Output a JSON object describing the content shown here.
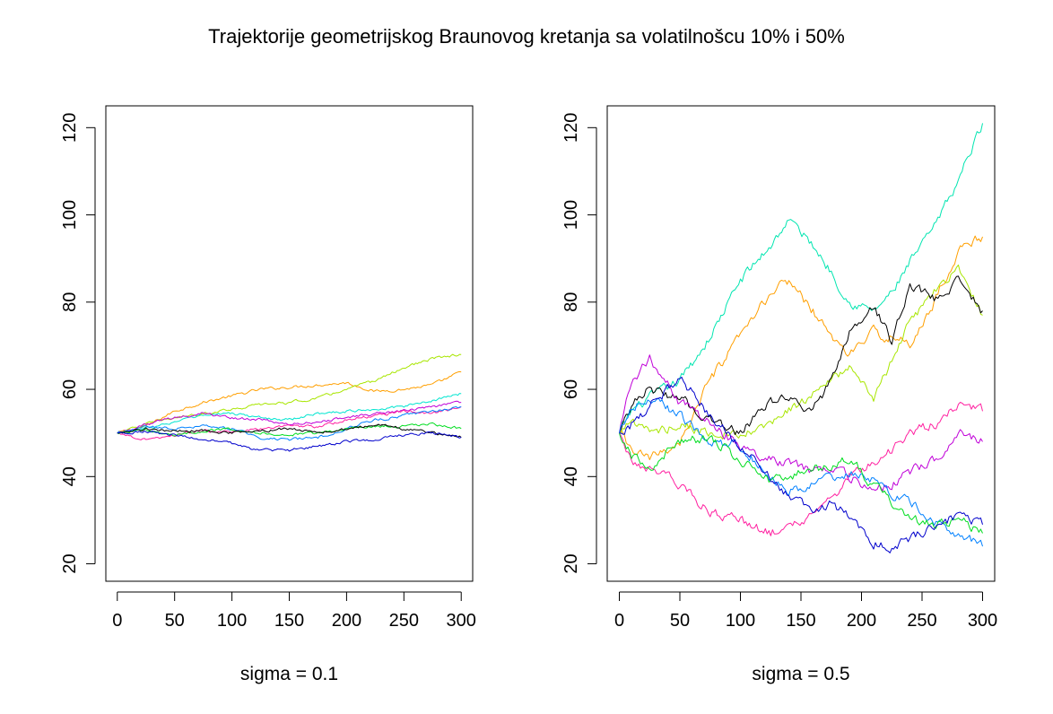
{
  "title": "Trajektorije geometrijskog Braunovog kretanja sa volatilnošcu 10% i 50%",
  "chart_data": [
    {
      "type": "line",
      "title": "",
      "xlabel": "sigma = 0.1",
      "ylabel": "",
      "xlim": [
        -10,
        310
      ],
      "ylim": [
        16,
        125
      ],
      "xticks": [
        0,
        50,
        100,
        150,
        200,
        250,
        300
      ],
      "yticks": [
        20,
        40,
        60,
        80,
        100,
        120
      ],
      "grid": false,
      "legend": "none",
      "series": [
        {
          "color": "#ff9f00",
          "x": [
            0,
            25,
            50,
            75,
            100,
            125,
            150,
            175,
            200,
            225,
            250,
            275,
            300
          ],
          "values": [
            50,
            51.5,
            55,
            57,
            58.5,
            60,
            60.5,
            61,
            61.5,
            59.5,
            60,
            61,
            64
          ]
        },
        {
          "color": "#a8e600",
          "x": [
            0,
            25,
            50,
            75,
            100,
            125,
            150,
            175,
            200,
            225,
            250,
            275,
            300
          ],
          "values": [
            50,
            52,
            53.5,
            54.5,
            55.5,
            56.5,
            57,
            58,
            60,
            62,
            65,
            67,
            68
          ]
        },
        {
          "color": "#00e5d0",
          "x": [
            0,
            25,
            50,
            75,
            100,
            125,
            150,
            175,
            200,
            225,
            250,
            275,
            300
          ],
          "values": [
            50,
            51,
            52.5,
            54,
            54.5,
            53.5,
            53,
            54.5,
            55,
            55.5,
            56,
            57.5,
            59
          ]
        },
        {
          "color": "#c000d8",
          "x": [
            0,
            25,
            50,
            75,
            100,
            125,
            150,
            175,
            200,
            225,
            250,
            275,
            300
          ],
          "values": [
            50,
            52,
            53.5,
            54.5,
            53.5,
            53,
            52,
            52.5,
            53.5,
            54.5,
            55,
            56,
            57
          ]
        },
        {
          "color": "#ff20a0",
          "x": [
            0,
            25,
            50,
            75,
            100,
            125,
            150,
            175,
            200,
            225,
            250,
            275,
            300
          ],
          "values": [
            50,
            48.5,
            49.5,
            50.5,
            50,
            51,
            51.5,
            51.5,
            53,
            54,
            55,
            54.5,
            56
          ]
        },
        {
          "color": "#0080ff",
          "x": [
            0,
            25,
            50,
            75,
            100,
            125,
            150,
            175,
            200,
            225,
            250,
            275,
            300
          ],
          "values": [
            50,
            51.5,
            51,
            51.5,
            51,
            49,
            48.5,
            49,
            51,
            53,
            54,
            55,
            56
          ]
        },
        {
          "color": "#00dd20",
          "x": [
            0,
            25,
            50,
            75,
            100,
            125,
            150,
            175,
            200,
            225,
            250,
            275,
            300
          ],
          "values": [
            50,
            50.5,
            49.5,
            50.5,
            51,
            50,
            49.5,
            50,
            51,
            51.5,
            51.5,
            52,
            51
          ]
        },
        {
          "color": "#000000",
          "x": [
            0,
            25,
            50,
            75,
            100,
            125,
            150,
            175,
            200,
            225,
            250,
            275,
            300
          ],
          "values": [
            50,
            51,
            50.5,
            50.5,
            50,
            50.5,
            51,
            50,
            51,
            52,
            51,
            50,
            49
          ]
        },
        {
          "color": "#0000cc",
          "x": [
            0,
            25,
            50,
            75,
            100,
            125,
            150,
            175,
            200,
            225,
            250,
            275,
            300
          ],
          "values": [
            50,
            50.5,
            49.5,
            48.5,
            47.5,
            46,
            46,
            47,
            48,
            48.5,
            49.5,
            50,
            49
          ]
        }
      ]
    },
    {
      "type": "line",
      "title": "",
      "xlabel": "sigma = 0.5",
      "ylabel": "",
      "xlim": [
        -10,
        310
      ],
      "ylim": [
        16,
        125
      ],
      "xticks": [
        0,
        50,
        100,
        150,
        200,
        250,
        300
      ],
      "yticks": [
        20,
        40,
        60,
        80,
        100,
        120
      ],
      "grid": false,
      "legend": "none",
      "series": [
        {
          "color": "#00e5b0",
          "x": [
            0,
            10,
            25,
            50,
            75,
            100,
            125,
            140,
            160,
            175,
            190,
            210,
            225,
            240,
            260,
            280,
            300
          ],
          "values": [
            50,
            55,
            58,
            62,
            72,
            85,
            93,
            99,
            93,
            87,
            80,
            78,
            82,
            89,
            97,
            108,
            121
          ]
        },
        {
          "color": "#ff9f00",
          "x": [
            0,
            10,
            25,
            50,
            75,
            100,
            125,
            140,
            160,
            175,
            190,
            210,
            225,
            240,
            260,
            280,
            300
          ],
          "values": [
            50,
            46,
            44,
            48,
            62,
            72,
            82,
            85,
            78,
            72,
            68,
            73,
            72,
            70,
            80,
            92,
            95
          ]
        },
        {
          "color": "#a8e600",
          "x": [
            0,
            10,
            25,
            50,
            75,
            100,
            125,
            140,
            160,
            175,
            190,
            210,
            225,
            240,
            260,
            280,
            300
          ],
          "values": [
            50,
            53,
            50,
            52,
            50,
            49,
            52,
            55,
            59,
            62,
            65,
            58,
            66,
            76,
            82,
            88,
            77
          ]
        },
        {
          "color": "#000000",
          "x": [
            0,
            10,
            25,
            50,
            75,
            100,
            125,
            140,
            160,
            175,
            190,
            210,
            225,
            240,
            260,
            280,
            300
          ],
          "values": [
            50,
            57,
            60,
            58,
            53,
            50,
            57,
            58,
            55,
            62,
            73,
            79,
            71,
            84,
            81,
            85,
            78
          ]
        },
        {
          "color": "#ff20a0",
          "x": [
            0,
            10,
            25,
            50,
            75,
            100,
            125,
            140,
            160,
            175,
            190,
            210,
            225,
            240,
            260,
            280,
            300
          ],
          "values": [
            50,
            44,
            42,
            38,
            32,
            30,
            27,
            29,
            31,
            35,
            40,
            43,
            46,
            50,
            52,
            57,
            55
          ]
        },
        {
          "color": "#c000d8",
          "x": [
            0,
            10,
            25,
            50,
            75,
            100,
            125,
            140,
            160,
            175,
            190,
            210,
            225,
            240,
            260,
            280,
            300
          ],
          "values": [
            50,
            62,
            67,
            57,
            52,
            47,
            44,
            43,
            41,
            42,
            40,
            37,
            38,
            41,
            44,
            50,
            48
          ]
        },
        {
          "color": "#0080ff",
          "x": [
            0,
            10,
            25,
            50,
            75,
            100,
            125,
            140,
            160,
            175,
            190,
            210,
            225,
            240,
            260,
            280,
            300
          ],
          "values": [
            50,
            56,
            58,
            54,
            48,
            47,
            40,
            37,
            38,
            40,
            41,
            39,
            36,
            34,
            30,
            27,
            24
          ]
        },
        {
          "color": "#00dd20",
          "x": [
            0,
            10,
            25,
            50,
            75,
            100,
            125,
            140,
            160,
            175,
            190,
            210,
            225,
            240,
            260,
            280,
            300
          ],
          "values": [
            50,
            45,
            42,
            48,
            49,
            44,
            39,
            40,
            42,
            42,
            44,
            38,
            34,
            30,
            29,
            30,
            27
          ]
        },
        {
          "color": "#0000cc",
          "x": [
            0,
            10,
            25,
            50,
            75,
            100,
            125,
            140,
            160,
            175,
            190,
            210,
            225,
            240,
            260,
            280,
            300
          ],
          "values": [
            50,
            52,
            56,
            63,
            54,
            47,
            40,
            35,
            32,
            34,
            31,
            25,
            23,
            26,
            29,
            31,
            29
          ]
        }
      ]
    }
  ]
}
